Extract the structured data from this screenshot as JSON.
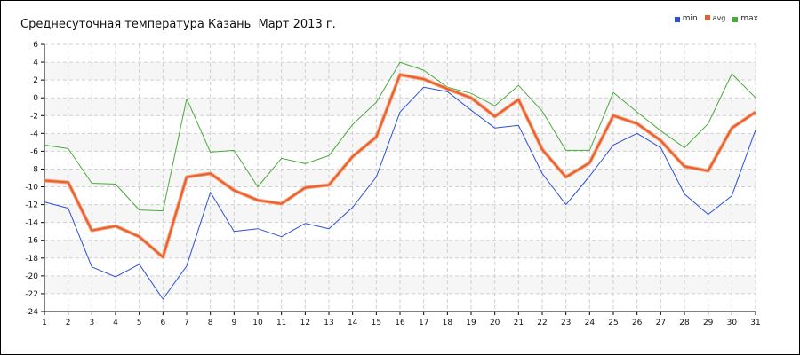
{
  "chart_data": {
    "type": "line",
    "title": "Среднесуточная температура Казань  Март 2013 г.",
    "xlabel": "",
    "ylabel": "",
    "x": [
      1,
      2,
      3,
      4,
      5,
      6,
      7,
      8,
      9,
      10,
      11,
      12,
      13,
      14,
      15,
      16,
      17,
      18,
      19,
      20,
      21,
      22,
      23,
      24,
      25,
      26,
      27,
      28,
      29,
      30,
      31
    ],
    "ylim": [
      -24,
      6
    ],
    "yticks": [
      6,
      4,
      2,
      0,
      -2,
      -4,
      -6,
      -8,
      -10,
      -12,
      -14,
      -16,
      -18,
      -20,
      -22,
      -24
    ],
    "grid": true,
    "legend_position": "top-right",
    "series": [
      {
        "name": "min",
        "color": "#2a4fd6",
        "values": [
          -11.7,
          -12.4,
          -19.0,
          -20.1,
          -18.7,
          -22.6,
          -18.9,
          -10.6,
          -15.0,
          -14.7,
          -15.6,
          -14.1,
          -14.7,
          -12.3,
          -8.9,
          -1.6,
          1.2,
          0.7,
          -1.4,
          -3.4,
          -3.1,
          -8.5,
          -12.0,
          -8.8,
          -5.3,
          -4.0,
          -5.6,
          -10.8,
          -13.1,
          -11.0,
          -3.6
        ]
      },
      {
        "name": "avg",
        "color": "#e8602c",
        "values": [
          -9.3,
          -9.5,
          -14.9,
          -14.4,
          -15.6,
          -17.9,
          -8.9,
          -8.5,
          -10.4,
          -11.5,
          -11.9,
          -10.1,
          -9.8,
          -6.6,
          -4.4,
          2.6,
          2.1,
          1.0,
          0.0,
          -2.1,
          -0.2,
          -5.8,
          -8.9,
          -7.3,
          -2.0,
          -2.9,
          -4.8,
          -7.7,
          -8.2,
          -3.4,
          -1.6
        ]
      },
      {
        "name": "max",
        "color": "#4aaa3c",
        "values": [
          -5.3,
          -5.7,
          -9.6,
          -9.7,
          -12.6,
          -12.7,
          -0.1,
          -6.1,
          -5.9,
          -10.0,
          -6.8,
          -7.4,
          -6.5,
          -3.0,
          -0.5,
          4.0,
          3.1,
          1.2,
          0.5,
          -0.9,
          1.4,
          -1.5,
          -5.9,
          -5.9,
          0.6,
          -1.6,
          -3.7,
          -5.6,
          -2.9,
          2.7,
          0.0
        ]
      }
    ]
  }
}
